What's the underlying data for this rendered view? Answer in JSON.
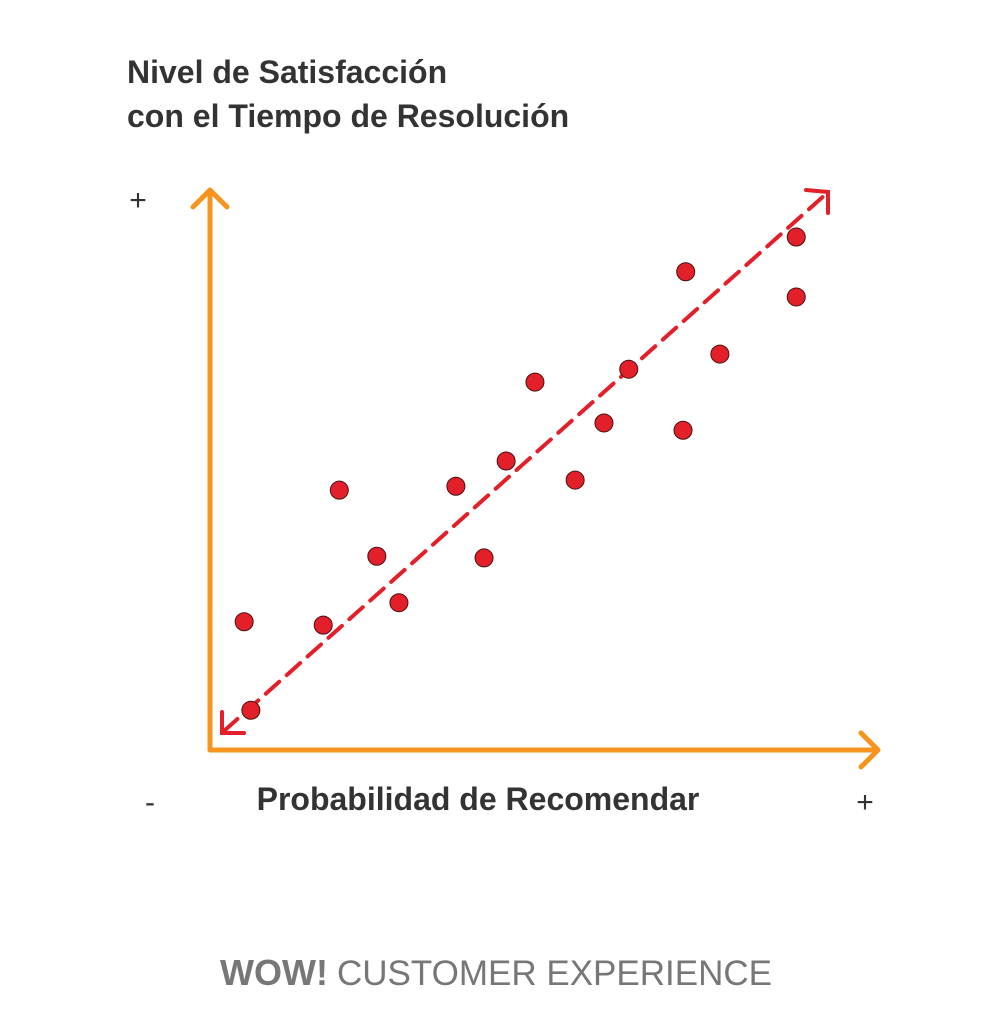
{
  "chart_data": {
    "type": "scatter",
    "title": [
      "Nivel de Satisfacción",
      "con el Tiempo de Resolución"
    ],
    "x_label": "Probabilidad de Recomendar",
    "y_max_label": "+",
    "x_min_label": "-",
    "x_max_label": "+",
    "xlim": [
      0,
      100
    ],
    "ylim": [
      0,
      100
    ],
    "color": "#e3202a",
    "x": [
      5.1,
      6.1,
      16.9,
      19.3,
      24.9,
      28.2,
      36.7,
      40.9,
      44.2,
      48.5,
      54.5,
      58.8,
      62.5,
      70.6,
      71.0,
      76.1,
      87.5,
      87.5
    ],
    "values": [
      22.9,
      7.1,
      22.3,
      46.4,
      34.6,
      26.3,
      47.1,
      34.3,
      51.6,
      65.7,
      48.2,
      58.4,
      68.0,
      57.1,
      85.4,
      70.7,
      91.6,
      80.9
    ]
  },
  "footer": {
    "brand": "WOW!",
    "text": "CUSTOMER EXPERIENCE"
  }
}
